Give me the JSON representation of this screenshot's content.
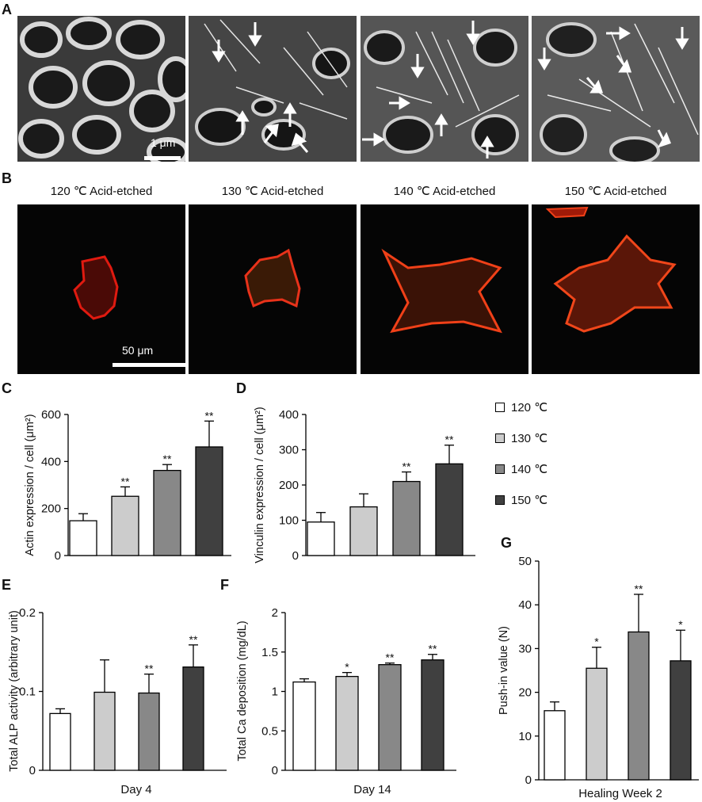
{
  "panel_labels": {
    "A": "A",
    "B": "B",
    "C": "C",
    "D": "D",
    "E": "E",
    "F": "F",
    "G": "G"
  },
  "panel_a": {
    "scalebar_label": "1 μm"
  },
  "panel_b": {
    "titles": [
      "120 ℃ Acid-etched",
      "130 ℃ Acid-etched",
      "140 ℃ Acid-etched",
      "150 ℃ Acid-etched"
    ],
    "scalebar_label": "50 μm"
  },
  "legend": {
    "items": [
      {
        "label": "120 ℃",
        "color": "#ffffff"
      },
      {
        "label": "130 ℃",
        "color": "#cccccc"
      },
      {
        "label": "140 ℃",
        "color": "#888888"
      },
      {
        "label": "150 ℃",
        "color": "#404040"
      }
    ]
  },
  "colors": [
    "#ffffff",
    "#cccccc",
    "#888888",
    "#404040"
  ],
  "chart_data": [
    {
      "id": "C",
      "type": "bar",
      "ylabel": "Actin expression / cell (μm²)",
      "xlabel": "",
      "categories": [
        "120 ℃",
        "130 ℃",
        "140 ℃",
        "150 ℃"
      ],
      "values": [
        148,
        252,
        362,
        462
      ],
      "errors": [
        30,
        40,
        25,
        110
      ],
      "significance": [
        "",
        "**",
        "**",
        "**"
      ],
      "ylim": [
        0,
        600
      ],
      "yticks": [
        0,
        200,
        400,
        600
      ],
      "ytick_labels": [
        "0",
        "200",
        "400",
        "600"
      ]
    },
    {
      "id": "D",
      "type": "bar",
      "ylabel": "Vinculin expression / cell (μm²)",
      "xlabel": "",
      "categories": [
        "120 ℃",
        "130 ℃",
        "140 ℃",
        "150 ℃"
      ],
      "values": [
        95,
        138,
        210,
        260
      ],
      "errors": [
        27,
        37,
        27,
        53
      ],
      "significance": [
        "",
        "",
        "**",
        "**"
      ],
      "ylim": [
        0,
        400
      ],
      "yticks": [
        0,
        100,
        200,
        300,
        400
      ],
      "ytick_labels": [
        "0",
        "100",
        "200",
        "300",
        "400"
      ]
    },
    {
      "id": "E",
      "type": "bar",
      "ylabel": "Total ALP activity (arbitrary unit)",
      "xlabel": "Day 4",
      "categories": [
        "120 ℃",
        "130 ℃",
        "140 ℃",
        "150 ℃"
      ],
      "values": [
        0.072,
        0.099,
        0.098,
        0.131
      ],
      "errors": [
        0.006,
        0.041,
        0.024,
        0.028
      ],
      "significance": [
        "",
        "",
        "**",
        "**"
      ],
      "ylim": [
        0,
        0.2
      ],
      "yticks": [
        0,
        0.1,
        0.2
      ],
      "ytick_labels": [
        "0",
        "0.1",
        "0.2"
      ]
    },
    {
      "id": "F",
      "type": "bar",
      "ylabel": "Total Ca deposition (mg/dL)",
      "xlabel": "Day 14",
      "categories": [
        "120 ℃",
        "130 ℃",
        "140 ℃",
        "150 ℃"
      ],
      "values": [
        1.12,
        1.19,
        1.34,
        1.4
      ],
      "errors": [
        0.04,
        0.05,
        0.02,
        0.07
      ],
      "significance": [
        "",
        "*",
        "**",
        "**"
      ],
      "ylim": [
        0,
        2
      ],
      "yticks": [
        0,
        0.5,
        1,
        1.5,
        2
      ],
      "ytick_labels": [
        "0",
        "0.5",
        "1",
        "1.5",
        "2"
      ]
    },
    {
      "id": "G",
      "type": "bar",
      "ylabel": "Push-in value (N)",
      "xlabel": "Healing Week 2",
      "categories": [
        "120 ℃",
        "130 ℃",
        "140 ℃",
        "150 ℃"
      ],
      "values": [
        15.8,
        25.5,
        33.8,
        27.2
      ],
      "errors": [
        2.0,
        4.8,
        8.6,
        7.0
      ],
      "significance": [
        "",
        "*",
        "**",
        "*"
      ],
      "ylim": [
        0,
        50
      ],
      "yticks": [
        0,
        10,
        20,
        30,
        40,
        50
      ],
      "ytick_labels": [
        "0",
        "10",
        "20",
        "30",
        "40",
        "50"
      ]
    }
  ]
}
